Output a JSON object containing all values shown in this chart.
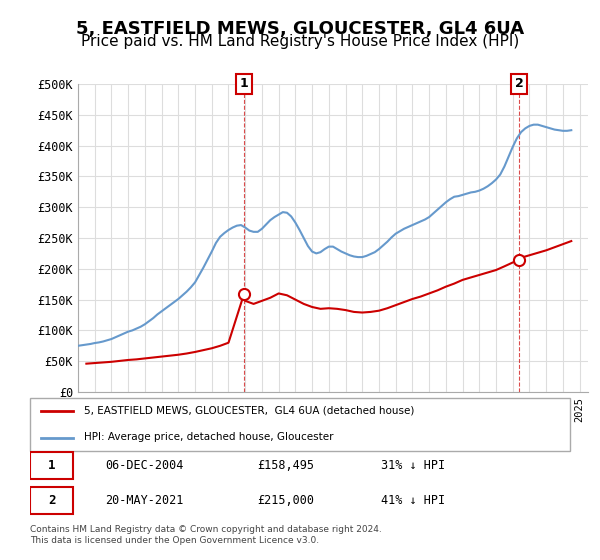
{
  "title": "5, EASTFIELD MEWS, GLOUCESTER, GL4 6UA",
  "subtitle": "Price paid vs. HM Land Registry's House Price Index (HPI)",
  "title_fontsize": 13,
  "subtitle_fontsize": 11,
  "ylabel_ticks": [
    "£0",
    "£50K",
    "£100K",
    "£150K",
    "£200K",
    "£250K",
    "£300K",
    "£350K",
    "£400K",
    "£450K",
    "£500K"
  ],
  "ytick_values": [
    0,
    50000,
    100000,
    150000,
    200000,
    250000,
    300000,
    350000,
    400000,
    450000,
    500000
  ],
  "ylim": [
    0,
    500000
  ],
  "xlim_start": 1995.0,
  "xlim_end": 2025.5,
  "red_line_color": "#cc0000",
  "blue_line_color": "#6699cc",
  "marker_color": "#cc0000",
  "dashed_line_color": "#cc0000",
  "grid_color": "#dddddd",
  "bg_color": "#ffffff",
  "legend_label_red": "5, EASTFIELD MEWS, GLOUCESTER,  GL4 6UA (detached house)",
  "legend_label_blue": "HPI: Average price, detached house, Gloucester",
  "marker1_x": 2004.92,
  "marker1_y": 158495,
  "marker1_label": "1",
  "marker1_date": "06-DEC-2004",
  "marker1_price": "£158,495",
  "marker1_hpi": "31% ↓ HPI",
  "marker2_x": 2021.38,
  "marker2_y": 215000,
  "marker2_label": "2",
  "marker2_date": "20-MAY-2021",
  "marker2_price": "£215,000",
  "marker2_hpi": "41% ↓ HPI",
  "footer": "Contains HM Land Registry data © Crown copyright and database right 2024.\nThis data is licensed under the Open Government Licence v3.0.",
  "hpi_years": [
    1995,
    1995.25,
    1995.5,
    1995.75,
    1996,
    1996.25,
    1996.5,
    1996.75,
    1997,
    1997.25,
    1997.5,
    1997.75,
    1998,
    1998.25,
    1998.5,
    1998.75,
    1999,
    1999.25,
    1999.5,
    1999.75,
    2000,
    2000.25,
    2000.5,
    2000.75,
    2001,
    2001.25,
    2001.5,
    2001.75,
    2002,
    2002.25,
    2002.5,
    2002.75,
    2003,
    2003.25,
    2003.5,
    2003.75,
    2004,
    2004.25,
    2004.5,
    2004.75,
    2005,
    2005.25,
    2005.5,
    2005.75,
    2006,
    2006.25,
    2006.5,
    2006.75,
    2007,
    2007.25,
    2007.5,
    2007.75,
    2008,
    2008.25,
    2008.5,
    2008.75,
    2009,
    2009.25,
    2009.5,
    2009.75,
    2010,
    2010.25,
    2010.5,
    2010.75,
    2011,
    2011.25,
    2011.5,
    2011.75,
    2012,
    2012.25,
    2012.5,
    2012.75,
    2013,
    2013.25,
    2013.5,
    2013.75,
    2014,
    2014.25,
    2014.5,
    2014.75,
    2015,
    2015.25,
    2015.5,
    2015.75,
    2016,
    2016.25,
    2016.5,
    2016.75,
    2017,
    2017.25,
    2017.5,
    2017.75,
    2018,
    2018.25,
    2018.5,
    2018.75,
    2019,
    2019.25,
    2019.5,
    2019.75,
    2020,
    2020.25,
    2020.5,
    2020.75,
    2021,
    2021.25,
    2021.5,
    2021.75,
    2022,
    2022.25,
    2022.5,
    2022.75,
    2023,
    2023.25,
    2023.5,
    2023.75,
    2024,
    2024.25,
    2024.5
  ],
  "hpi_values": [
    75000,
    76000,
    77000,
    78000,
    79500,
    80500,
    82000,
    84000,
    86000,
    89000,
    92000,
    95000,
    98000,
    100000,
    103000,
    106000,
    110000,
    115000,
    120000,
    126000,
    131000,
    136000,
    141000,
    146000,
    151000,
    157000,
    163000,
    170000,
    178000,
    190000,
    202000,
    215000,
    228000,
    242000,
    252000,
    258000,
    263000,
    267000,
    270000,
    271000,
    267000,
    262000,
    260000,
    260000,
    265000,
    272000,
    279000,
    284000,
    288000,
    292000,
    291000,
    285000,
    275000,
    263000,
    250000,
    237000,
    228000,
    225000,
    227000,
    232000,
    236000,
    236000,
    232000,
    228000,
    225000,
    222000,
    220000,
    219000,
    219000,
    221000,
    224000,
    227000,
    232000,
    238000,
    244000,
    251000,
    257000,
    261000,
    265000,
    268000,
    271000,
    274000,
    277000,
    280000,
    284000,
    290000,
    296000,
    302000,
    308000,
    313000,
    317000,
    318000,
    320000,
    322000,
    324000,
    325000,
    327000,
    330000,
    334000,
    339000,
    345000,
    353000,
    366000,
    382000,
    398000,
    412000,
    422000,
    428000,
    432000,
    434000,
    434000,
    432000,
    430000,
    428000,
    426000,
    425000,
    424000,
    424000,
    425000
  ],
  "red_years": [
    1995.5,
    1996,
    1996.5,
    1997,
    1997.5,
    1998,
    1998.5,
    1999,
    1999.5,
    2000,
    2000.5,
    2001,
    2001.5,
    2002,
    2002.5,
    2003,
    2003.5,
    2004,
    2004.92,
    2005,
    2005.5,
    2006,
    2006.5,
    2007,
    2007.5,
    2008,
    2008.5,
    2009,
    2009.5,
    2010,
    2010.5,
    2011,
    2011.5,
    2012,
    2012.5,
    2013,
    2013.5,
    2014,
    2014.5,
    2015,
    2015.5,
    2016,
    2016.5,
    2017,
    2017.5,
    2018,
    2018.5,
    2019,
    2019.5,
    2020,
    2020.5,
    2021.38,
    2021.5,
    2022,
    2022.5,
    2023,
    2023.5,
    2024,
    2024.5
  ],
  "red_values": [
    46000,
    47000,
    48000,
    49000,
    50500,
    52000,
    53000,
    54500,
    56000,
    57500,
    59000,
    60500,
    62500,
    65000,
    68000,
    71000,
    75000,
    80000,
    158495,
    148000,
    143000,
    148000,
    153000,
    160000,
    157000,
    150000,
    143000,
    138000,
    135000,
    136000,
    135000,
    133000,
    130000,
    129000,
    130000,
    132000,
    136000,
    141000,
    146000,
    151000,
    155000,
    160000,
    165000,
    171000,
    176000,
    182000,
    186000,
    190000,
    194000,
    198000,
    204000,
    215000,
    218000,
    222000,
    226000,
    230000,
    235000,
    240000,
    245000
  ]
}
